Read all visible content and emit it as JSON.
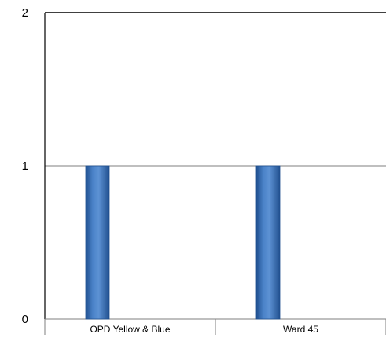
{
  "chart_data": {
    "type": "bar",
    "title": "",
    "xlabel": "",
    "ylabel": "",
    "categories": [
      "OPD Yellow & Blue",
      "Ward 45"
    ],
    "series": [
      {
        "values": [
          1,
          1
        ]
      }
    ],
    "ylim": [
      0,
      2
    ],
    "yticks": [
      0,
      1,
      2
    ],
    "grid": true,
    "legend": "none",
    "bar_color": "#3a6fb4",
    "bar_edge_color": "#1f4f8f"
  }
}
